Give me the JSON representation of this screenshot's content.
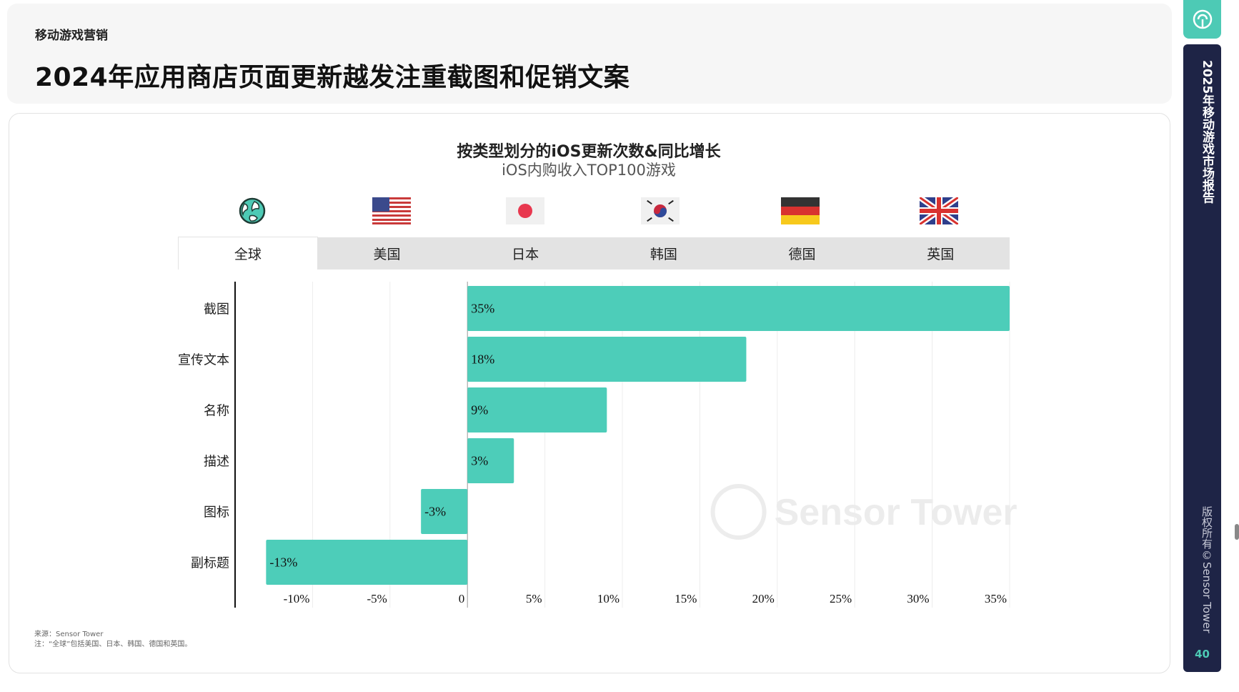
{
  "header": {
    "kicker": "移动游戏营销",
    "title": "2024年应用商店页面更新越发注重截图和促销文案"
  },
  "chart_data": {
    "type": "bar",
    "orientation": "horizontal",
    "title": "按类型划分的iOS更新次数&同比增长",
    "subtitle": "iOS内购收入TOP100游戏",
    "categories": [
      "截图",
      "宣传文本",
      "名称",
      "描述",
      "图标",
      "副标题"
    ],
    "values": [
      35,
      18,
      9,
      3,
      -3,
      -13
    ],
    "value_labels": [
      "35%",
      "18%",
      "9%",
      "3%",
      "-3%",
      "-13%"
    ],
    "xlim": [
      -15,
      35
    ],
    "ticks": [
      -10,
      -5,
      0,
      5,
      10,
      15,
      20,
      25,
      30,
      35
    ],
    "tick_labels": [
      "-10%",
      "-5%",
      "0",
      "5%",
      "10%",
      "15%",
      "20%",
      "25%",
      "30%",
      "35%"
    ],
    "bar_color": "#4dcdb9",
    "grid": true,
    "watermark": "Sensor Tower"
  },
  "region_tabs": {
    "items": [
      {
        "label": "全球",
        "icon": "globe-icon",
        "active": true
      },
      {
        "label": "美国",
        "icon": "us-flag-icon",
        "active": false
      },
      {
        "label": "日本",
        "icon": "japan-flag-icon",
        "active": false
      },
      {
        "label": "韩国",
        "icon": "korea-flag-icon",
        "active": false
      },
      {
        "label": "德国",
        "icon": "germany-flag-icon",
        "active": false
      },
      {
        "label": "英国",
        "icon": "uk-flag-icon",
        "active": false
      }
    ]
  },
  "footnote": {
    "source": "来源：Sensor Tower",
    "note": "注：“全球”包括美国、日本、韩国、德国和英国。"
  },
  "sidebar": {
    "report_title": "2025年移动游戏市场报告",
    "copyright": "版权所有©Sensor Tower",
    "page_number": "40"
  },
  "colors": {
    "accent": "#4dcab5",
    "sidebar_bg": "#1e2446",
    "tab_bg": "#e3e3e3"
  }
}
